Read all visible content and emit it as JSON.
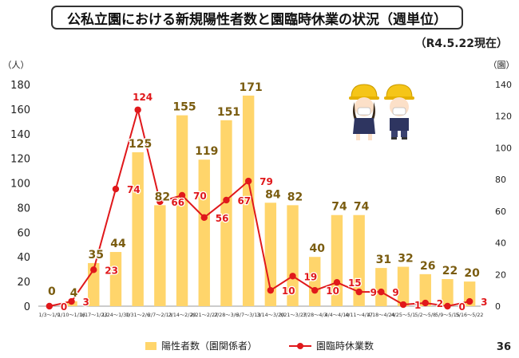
{
  "header": {
    "title": "公私立園における新規陽性者数と園臨時休業の状況（週単位）",
    "date_note": "（R4.5.22現在）"
  },
  "page_number": "36",
  "colors": {
    "bar": "#FFD56B",
    "line": "#E0181B",
    "bar_label": "#7A5C10",
    "line_label": "#E0181B"
  },
  "chart_data": {
    "type": "bar",
    "categories": [
      "1/3～1/9",
      "1/10～1/16",
      "1/17～1/23",
      "1/24～1/30",
      "1/31～2/6",
      "2/7～2/13",
      "2/14～2/20",
      "2/21～2/27",
      "2/28～3/6",
      "3/7～3/13",
      "3/14～3/20",
      "3/21～3/27",
      "3/28～4/3",
      "4/4～4/10",
      "4/11～4/17",
      "4/18～4/24",
      "4/25～5/1",
      "5/2～5/8",
      "5/9～5/15",
      "5/16～5/22"
    ],
    "series": [
      {
        "name": "陽性者数（園関係者）",
        "type": "bar",
        "axis": "left",
        "values": [
          0,
          4,
          35,
          44,
          125,
          82,
          155,
          119,
          151,
          171,
          84,
          82,
          40,
          74,
          74,
          31,
          32,
          26,
          22,
          20
        ]
      },
      {
        "name": "園臨時休業数",
        "type": "line",
        "axis": "right",
        "values": [
          0,
          3,
          23,
          74,
          124,
          66,
          70,
          56,
          67,
          79,
          10,
          19,
          10,
          15,
          9,
          9,
          1,
          2,
          0,
          3
        ]
      }
    ],
    "ylabel": "（人）",
    "y2label": "（園）",
    "ylim": [
      0,
      180
    ],
    "y2lim": [
      0,
      140
    ],
    "yticks": [
      0,
      20,
      40,
      60,
      80,
      100,
      120,
      140,
      160,
      180
    ],
    "y2ticks": [
      0,
      20,
      40,
      60,
      80,
      100,
      120,
      140
    ],
    "legend_position": "bottom"
  },
  "illustration": "two-children-hard-hats-masks"
}
